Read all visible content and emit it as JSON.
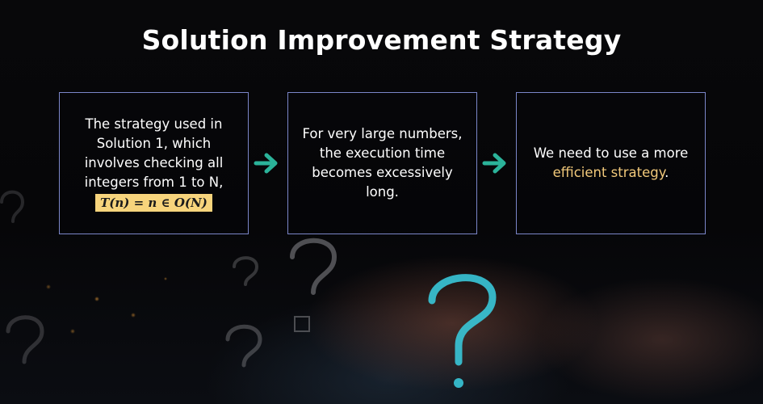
{
  "title": "Solution Improvement Strategy",
  "boxes": [
    {
      "lines": [
        "The strategy used in",
        "Solution 1, which",
        "involves checking all",
        "integers from 1 to N,"
      ],
      "formula": "T(n) = n ∈ O(N)"
    },
    {
      "lines": [
        "For very large numbers,",
        "the execution time",
        "becomes excessively",
        "long."
      ]
    },
    {
      "text_before": "We need to use a more",
      "highlight": "efficient strategy",
      "text_after": "."
    }
  ],
  "colors": {
    "box_border": "#7b86c9",
    "arrow": "#2bb39a",
    "formula_bg": "#f7d47c",
    "highlight_text": "#f2c97a"
  },
  "icons": [
    "arrow-right-icon",
    "question-mark-icon"
  ]
}
